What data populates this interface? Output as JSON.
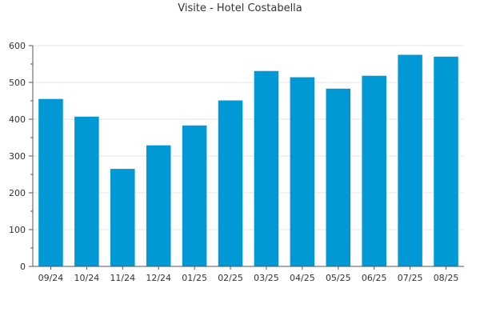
{
  "chart_data": {
    "type": "bar",
    "title": "Visite - Hotel Costabella",
    "xlabel": "",
    "ylabel": "",
    "categories": [
      "09/24",
      "10/24",
      "11/24",
      "12/24",
      "01/25",
      "02/25",
      "03/25",
      "04/25",
      "05/25",
      "06/25",
      "07/25",
      "08/25"
    ],
    "values": [
      455,
      407,
      265,
      329,
      383,
      451,
      531,
      514,
      483,
      518,
      575,
      570
    ],
    "ylim": [
      0,
      600
    ],
    "yticks": [
      "0",
      "100",
      "200",
      "300",
      "400",
      "500",
      "600"
    ],
    "grid": true,
    "legend": "none",
    "bar_color": "#0099d6",
    "grid_color": "#e6e6e6",
    "axis_color": "#555555"
  }
}
